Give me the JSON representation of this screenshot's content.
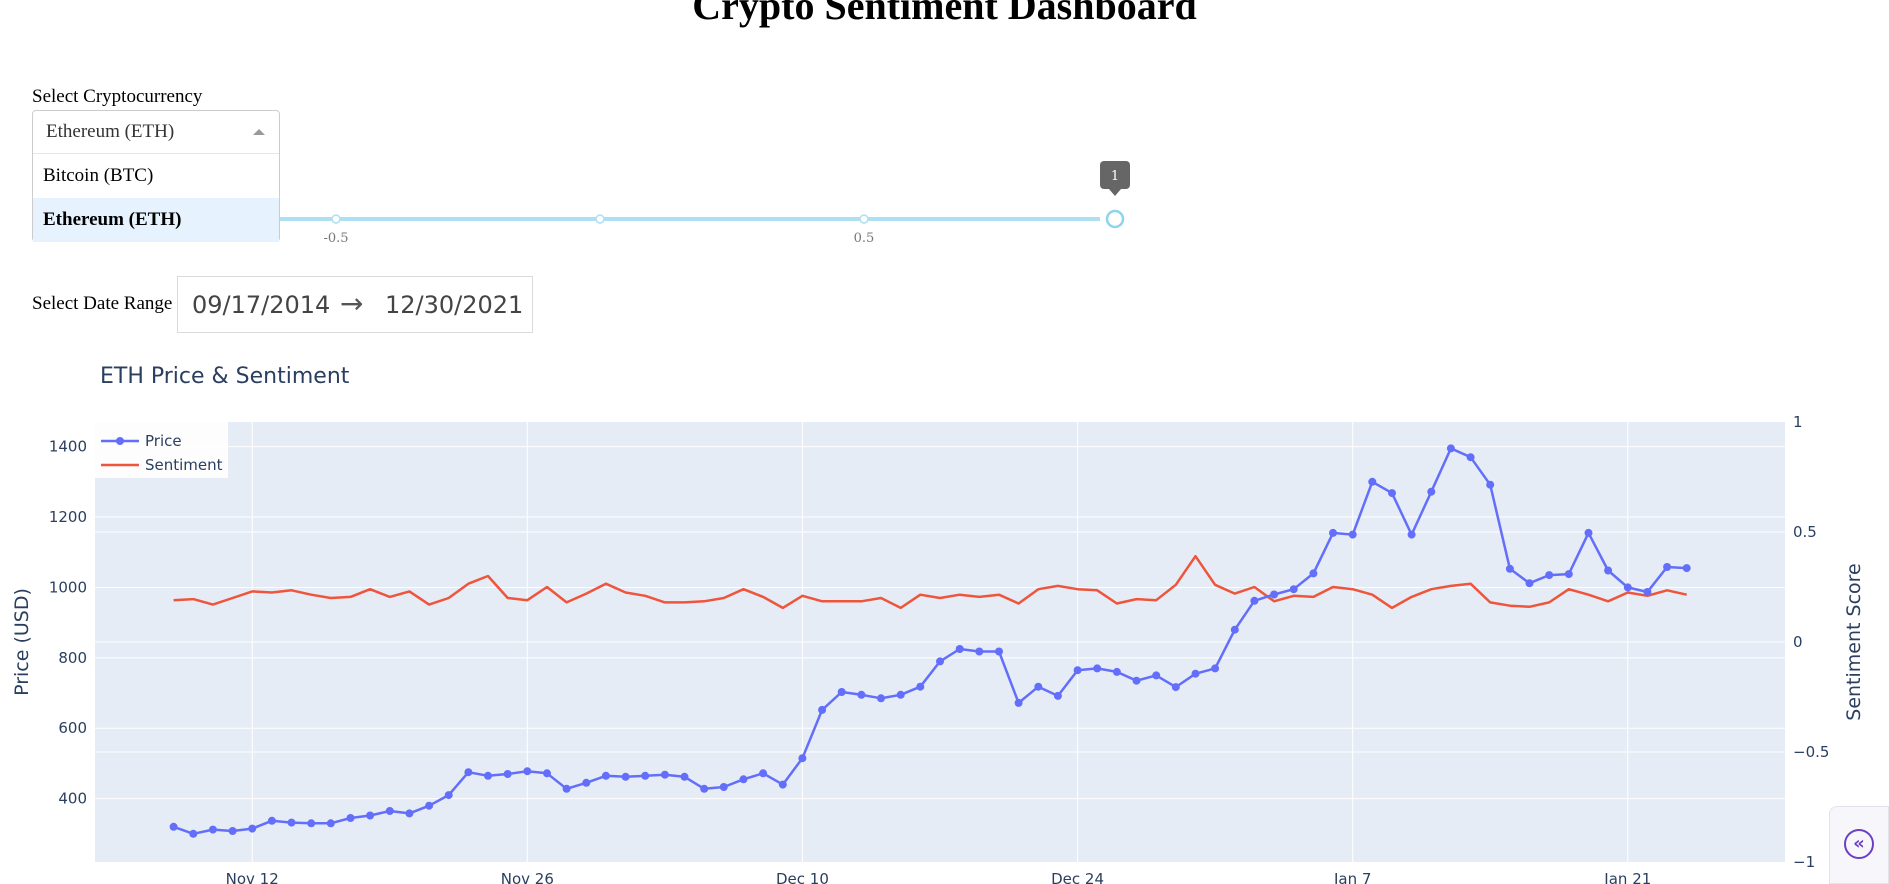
{
  "page_title": "Crypto Sentiment Dashboard",
  "crypto_select": {
    "label": "Select Cryptocurrency",
    "value": "Ethereum (ETH)",
    "options": [
      "Bitcoin (BTC)",
      "Ethereum (ETH)"
    ]
  },
  "sentiment_slider": {
    "tick_labels": [
      "-0.5",
      "0.5"
    ],
    "min": -1,
    "max": 1,
    "value": 1,
    "tooltip": "1"
  },
  "date_range": {
    "label": "Select Date Range",
    "start": "09/17/2014",
    "end": "12/30/2021",
    "arrow": "→"
  },
  "collapse_button": {
    "icon": "double-chevron-left-icon",
    "glyph": "«"
  },
  "colors": {
    "price": "#636efa",
    "sentiment": "#ef553b",
    "plot_bg": "#e5ecf6",
    "accent": "#6c3fc5"
  },
  "chart_data": {
    "type": "line",
    "title": "ETH Price & Sentiment",
    "xlabel": "",
    "ylabel": "Price (USD)",
    "y2label": "Sentiment Score",
    "x_start": "2020-11-08",
    "x_ticks": [
      "Nov 12",
      "Nov 26",
      "Dec 10",
      "Dec 24",
      "Jan 7",
      "Jan 21"
    ],
    "x_range": [
      "2020-11-04",
      "2021-01-29"
    ],
    "ylim": [
      220,
      1470
    ],
    "y_ticks": [
      "400",
      "600",
      "800",
      "1000",
      "1200",
      "1400"
    ],
    "y2lim": [
      -1,
      1
    ],
    "y2_ticks": [
      "−1",
      "−0.5",
      "0",
      "0.5",
      "1"
    ],
    "legend_position": "top-left",
    "grid": true,
    "series": [
      {
        "name": "Price",
        "axis": "y",
        "mode": "lines+markers",
        "values": [
          320,
          300,
          312,
          308,
          315,
          337,
          332,
          330,
          330,
          345,
          352,
          365,
          358,
          380,
          410,
          475,
          465,
          470,
          478,
          472,
          428,
          445,
          465,
          462,
          465,
          468,
          462,
          428,
          433,
          455,
          472,
          440,
          515,
          652,
          703,
          695,
          685,
          695,
          718,
          790,
          825,
          818,
          818,
          672,
          718,
          692,
          765,
          770,
          760,
          735,
          750,
          717,
          755,
          770,
          880,
          962,
          980,
          995,
          1040,
          1155,
          1150,
          1300,
          1268,
          1150,
          1272,
          1395,
          1370,
          1292,
          1053,
          1012,
          1035,
          1038,
          1155,
          1048,
          1000,
          987,
          1058,
          1055
        ]
      },
      {
        "name": "Sentiment",
        "axis": "y2",
        "mode": "lines",
        "values": [
          0.19,
          0.195,
          0.17,
          0.2,
          0.23,
          0.225,
          0.235,
          0.215,
          0.2,
          0.205,
          0.24,
          0.205,
          0.23,
          0.17,
          0.2,
          0.265,
          0.3,
          0.2,
          0.19,
          0.25,
          0.18,
          0.22,
          0.265,
          0.225,
          0.21,
          0.18,
          0.18,
          0.185,
          0.2,
          0.24,
          0.205,
          0.155,
          0.21,
          0.185,
          0.185,
          0.185,
          0.2,
          0.155,
          0.215,
          0.2,
          0.215,
          0.205,
          0.215,
          0.175,
          0.24,
          0.255,
          0.24,
          0.235,
          0.175,
          0.195,
          0.19,
          0.26,
          0.39,
          0.26,
          0.22,
          0.25,
          0.185,
          0.21,
          0.205,
          0.25,
          0.24,
          0.215,
          0.155,
          0.205,
          0.24,
          0.255,
          0.265,
          0.18,
          0.165,
          0.16,
          0.18,
          0.24,
          0.215,
          0.185,
          0.225,
          0.21,
          0.235,
          0.215
        ]
      }
    ]
  }
}
